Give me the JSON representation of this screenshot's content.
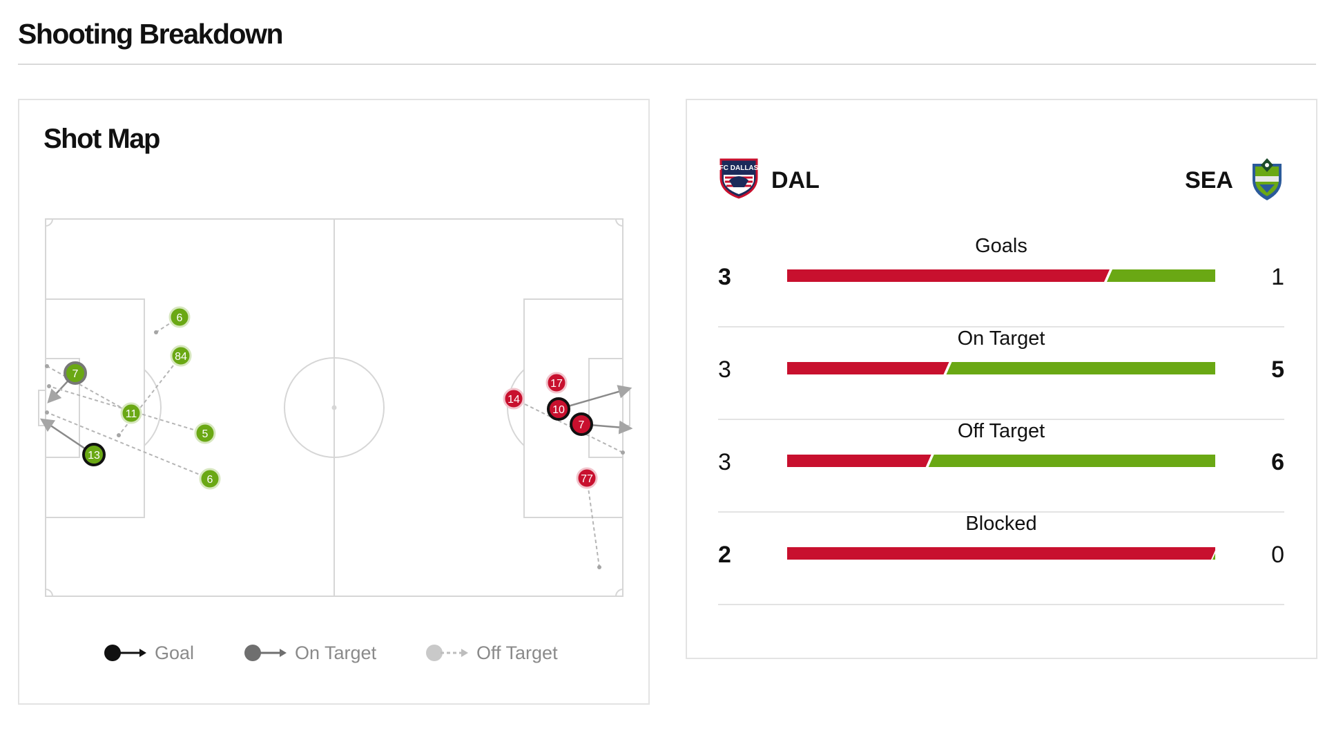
{
  "page": {
    "title": "Shooting Breakdown"
  },
  "shot_map": {
    "title": "Shot Map",
    "home_color": "#c8102e",
    "away_color": "#6aa814",
    "legend": [
      {
        "label": "Goal",
        "icon": "goal-marker-icon"
      },
      {
        "label": "On Target",
        "icon": "on-target-marker-icon"
      },
      {
        "label": "Off Target",
        "icon": "off-target-marker-icon"
      }
    ],
    "away_shots": [
      {
        "number": "6",
        "outcome": "off_target"
      },
      {
        "number": "84",
        "outcome": "off_target"
      },
      {
        "number": "7",
        "outcome": "on_target"
      },
      {
        "number": "11",
        "outcome": "off_target"
      },
      {
        "number": "5",
        "outcome": "off_target"
      },
      {
        "number": "13",
        "outcome": "goal"
      },
      {
        "number": "6",
        "outcome": "off_target"
      }
    ],
    "home_shots": [
      {
        "number": "17",
        "outcome": "blocked"
      },
      {
        "number": "14",
        "outcome": "off_target"
      },
      {
        "number": "10",
        "outcome": "goal"
      },
      {
        "number": "7",
        "outcome": "goal"
      },
      {
        "number": "77",
        "outcome": "off_target"
      }
    ]
  },
  "stats": {
    "home_team": {
      "abbr": "DAL",
      "logo": "fc-dallas-crest-icon",
      "color": "#c8102e"
    },
    "away_team": {
      "abbr": "SEA",
      "logo": "seattle-sounders-crest-icon",
      "color": "#6aa814"
    },
    "rows": [
      {
        "label": "Goals",
        "home": "3",
        "away": "1",
        "home_value": 3,
        "away_value": 1,
        "leader": "home"
      },
      {
        "label": "On Target",
        "home": "3",
        "away": "5",
        "home_value": 3,
        "away_value": 5,
        "leader": "away"
      },
      {
        "label": "Off Target",
        "home": "3",
        "away": "6",
        "home_value": 3,
        "away_value": 6,
        "leader": "away"
      },
      {
        "label": "Blocked",
        "home": "2",
        "away": "0",
        "home_value": 2,
        "away_value": 0,
        "leader": "home"
      }
    ]
  }
}
